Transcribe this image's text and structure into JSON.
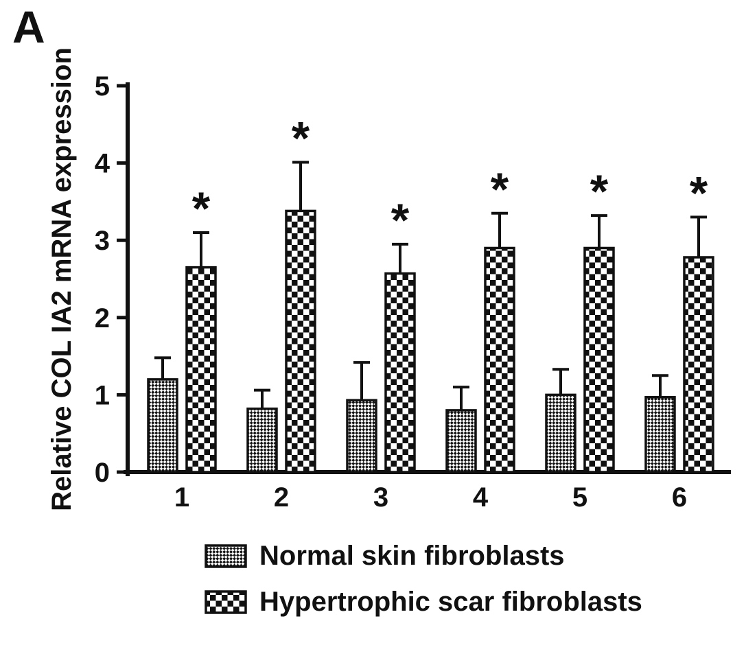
{
  "panel_label": "A",
  "colors": {
    "ink": "#111111",
    "background": "#ffffff"
  },
  "chart_data": {
    "type": "bar",
    "title": "",
    "xlabel": "",
    "ylabel": "Relative COL IA2 mRNA expression",
    "ylim": [
      0,
      5
    ],
    "yticks": [
      0,
      1,
      2,
      3,
      4,
      5
    ],
    "categories": [
      "1",
      "2",
      "3",
      "4",
      "5",
      "6"
    ],
    "grid": false,
    "error_bars": true,
    "legend_position": "bottom",
    "series": [
      {
        "name": "Normal skin fibroblasts",
        "pattern": "fine-checker",
        "values": [
          1.2,
          0.82,
          0.93,
          0.8,
          1.0,
          0.97
        ],
        "errors": [
          0.28,
          0.24,
          0.49,
          0.3,
          0.33,
          0.28
        ],
        "significance": [
          "",
          "",
          "",
          "",
          "",
          ""
        ]
      },
      {
        "name": "Hypertrophic scar fibroblasts",
        "pattern": "coarse-checker",
        "values": [
          2.65,
          3.38,
          2.57,
          2.9,
          2.9,
          2.78
        ],
        "errors": [
          0.45,
          0.63,
          0.38,
          0.45,
          0.42,
          0.52
        ],
        "significance": [
          "*",
          "*",
          "*",
          "*",
          "*",
          "*"
        ]
      }
    ]
  }
}
